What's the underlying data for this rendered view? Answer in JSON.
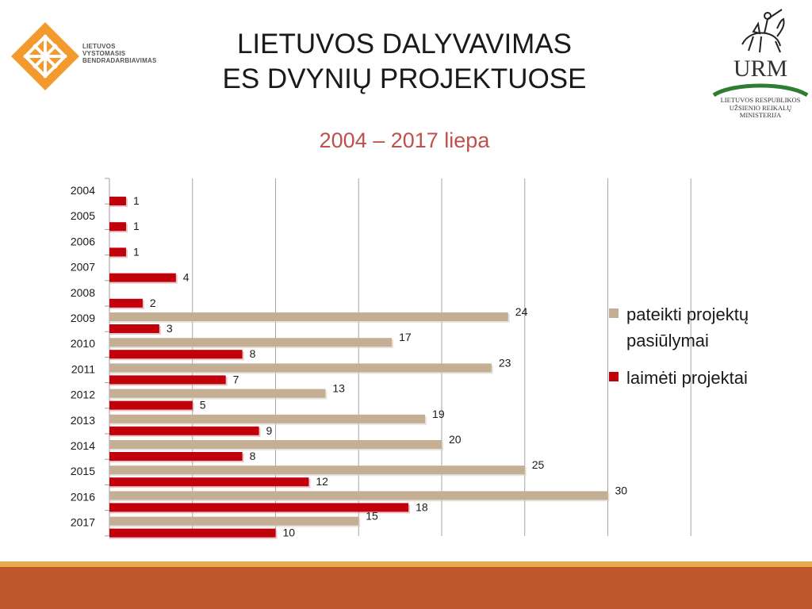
{
  "header": {
    "title_line1": "LIETUVOS DALYVAVIMAS",
    "title_line2": "ES DVYNIŲ PROJEKTUOSE",
    "subtitle": "2004 – 2017 liepa"
  },
  "logo_left": {
    "line1": "LIETUVOS",
    "line2": "VYSTOMASIS",
    "line3": "BENDRADARBIAVIMAS",
    "color": "#f39a2e"
  },
  "logo_right": {
    "abbr": "URM",
    "line1": "LIETUVOS RESPUBLIKOS",
    "line2": "UŽSIENIO REIKALŲ",
    "line3": "MINISTERIJA",
    "accent": "#2e7d32"
  },
  "chart_data": {
    "type": "bar",
    "orientation": "horizontal",
    "title": "2004 – 2017 liepa",
    "categories": [
      "2004",
      "2005",
      "2006",
      "2007",
      "2008",
      "2009",
      "2010",
      "2011",
      "2012",
      "2013",
      "2014",
      "2015",
      "2016",
      "2017"
    ],
    "series": [
      {
        "name": "pateikti projektų pasiūlymai",
        "color": "#c4ae94",
        "values": [
          null,
          null,
          null,
          null,
          null,
          24,
          17,
          23,
          13,
          19,
          20,
          25,
          30,
          15
        ]
      },
      {
        "name": "laimėti projektai",
        "color": "#c0000a",
        "values": [
          1,
          1,
          1,
          4,
          2,
          3,
          8,
          7,
          5,
          9,
          8,
          12,
          18,
          10
        ]
      }
    ],
    "xlim": [
      0,
      35
    ],
    "grid": true,
    "legend_position": "right"
  }
}
